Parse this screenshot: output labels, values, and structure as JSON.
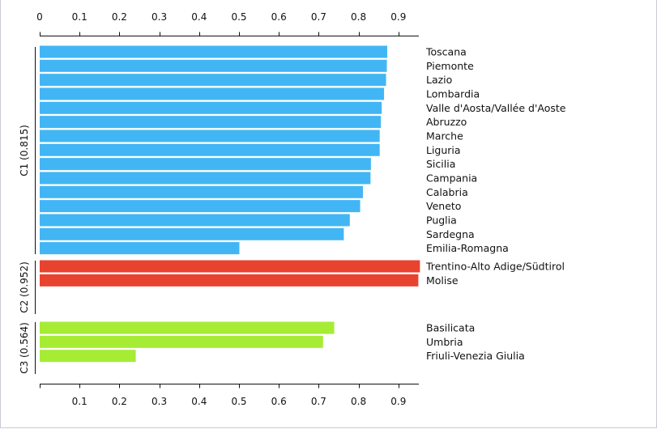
{
  "chart_data": {
    "type": "bar",
    "orientation": "horizontal",
    "axis_ticks": [
      "0",
      "0.1",
      "0.2",
      "0.3",
      "0.4",
      "0.5",
      "0.6",
      "0.7",
      "0.8",
      "0.9"
    ],
    "xlim": [
      0,
      0.95
    ],
    "clusters": [
      {
        "label": "C1 (0.815)",
        "color": "#42b6f4",
        "items": [
          {
            "name": "Toscana",
            "value": 0.872
          },
          {
            "name": "Piemonte",
            "value": 0.871
          },
          {
            "name": "Lazio",
            "value": 0.869
          },
          {
            "name": "Lombardia",
            "value": 0.864
          },
          {
            "name": "Valle d'Aosta/Vallée d'Aoste",
            "value": 0.858
          },
          {
            "name": "Abruzzo",
            "value": 0.856
          },
          {
            "name": "Marche",
            "value": 0.853
          },
          {
            "name": "Liguria",
            "value": 0.853
          },
          {
            "name": "Sicilia",
            "value": 0.831
          },
          {
            "name": "Campania",
            "value": 0.83
          },
          {
            "name": "Calabria",
            "value": 0.811
          },
          {
            "name": "Veneto",
            "value": 0.804
          },
          {
            "name": "Puglia",
            "value": 0.778
          },
          {
            "name": "Sardegna",
            "value": 0.763
          },
          {
            "name": "Emilia-Romagna",
            "value": 0.501
          }
        ]
      },
      {
        "label": "C2 (0.952)",
        "color": "#e8432f",
        "items": [
          {
            "name": "Trentino-Alto Adige/Südtirol",
            "value": 0.954
          },
          {
            "name": "Molise",
            "value": 0.95
          }
        ]
      },
      {
        "label": "C3 (0.564)",
        "color": "#a6ec35",
        "items": [
          {
            "name": "Basilicata",
            "value": 0.739
          },
          {
            "name": "Umbria",
            "value": 0.711
          },
          {
            "name": "Friuli-Venezia Giulia",
            "value": 0.241
          }
        ]
      }
    ]
  }
}
